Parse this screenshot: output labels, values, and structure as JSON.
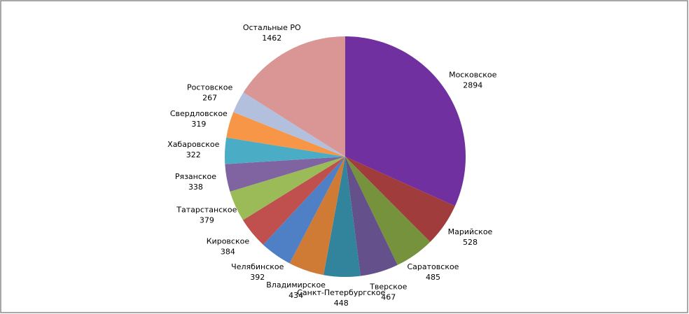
{
  "chart_data": {
    "type": "pie",
    "categories": [
      "Московское",
      "Марийское",
      "Саратовское",
      "Тверское",
      "Санкт-Петербургское",
      "Владимирское",
      "Челябинское",
      "Кировское",
      "Татарстанское",
      "Рязанское",
      "Хабаровское",
      "Свердловское",
      "Ростовское",
      "Остальные РО"
    ],
    "values": [
      2894,
      528,
      485,
      467,
      448,
      434,
      392,
      384,
      379,
      338,
      322,
      319,
      267,
      1462
    ],
    "colors": [
      "#7030a0",
      "#a03c3c",
      "#76923c",
      "#64508a",
      "#31849b",
      "#d07b35",
      "#4f7fc4",
      "#c0504d",
      "#9bbb59",
      "#8064a2",
      "#4bacc6",
      "#f79646",
      "#b3c0dd",
      "#d99694"
    ]
  }
}
